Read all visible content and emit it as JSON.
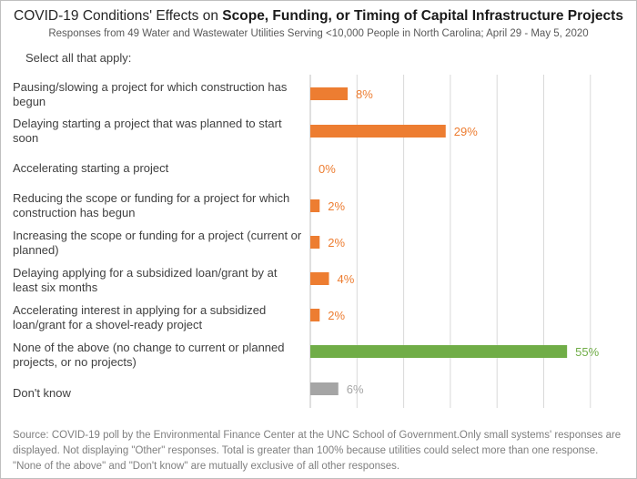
{
  "chart_data": {
    "type": "bar",
    "orientation": "horizontal",
    "title_prefix": "COVID-19 Conditions' Effects on ",
    "title_bold": "Scope, Funding, or Timing of Capital Infrastructure Projects",
    "subtitle": "Responses from 49 Water and Wastewater Utilities Serving <10,000 People in North Carolina; April 29 - May 5, 2020",
    "instruction": "Select all that apply:",
    "categories": [
      "Pausing/slowing a project for which construction has begun",
      "Delaying starting a project that was planned to start soon",
      "Accelerating starting a project",
      "Reducing the scope or funding for a project for which construction has begun",
      "Increasing the scope or funding for a project (current or planned)",
      "Delaying applying for a subsidized loan/grant by at least six months",
      "Accelerating interest in applying for a subsidized loan/grant for a shovel-ready project",
      "None of the above (no change to current or planned projects, or no projects)",
      "Don't know"
    ],
    "values": [
      8,
      29,
      0,
      2,
      2,
      4,
      2,
      55,
      6
    ],
    "value_labels": [
      "8%",
      "29%",
      "0%",
      "2%",
      "2%",
      "4%",
      "2%",
      "55%",
      "6%"
    ],
    "colors": [
      "#ed7d31",
      "#ed7d31",
      "#ed7d31",
      "#ed7d31",
      "#ed7d31",
      "#ed7d31",
      "#ed7d31",
      "#70ad47",
      "#a5a5a5"
    ],
    "xlim": [
      0,
      60
    ],
    "grid": true,
    "source": "Source: COVID-19 poll by the Environmental Finance Center at the UNC School of Government.Only small systems' responses are displayed. Not displaying \"Other\" responses. Total is greater than 100% because utilities could select more than one response. \"None of the above\" and \"Don't know\" are mutually exclusive of all other responses."
  }
}
